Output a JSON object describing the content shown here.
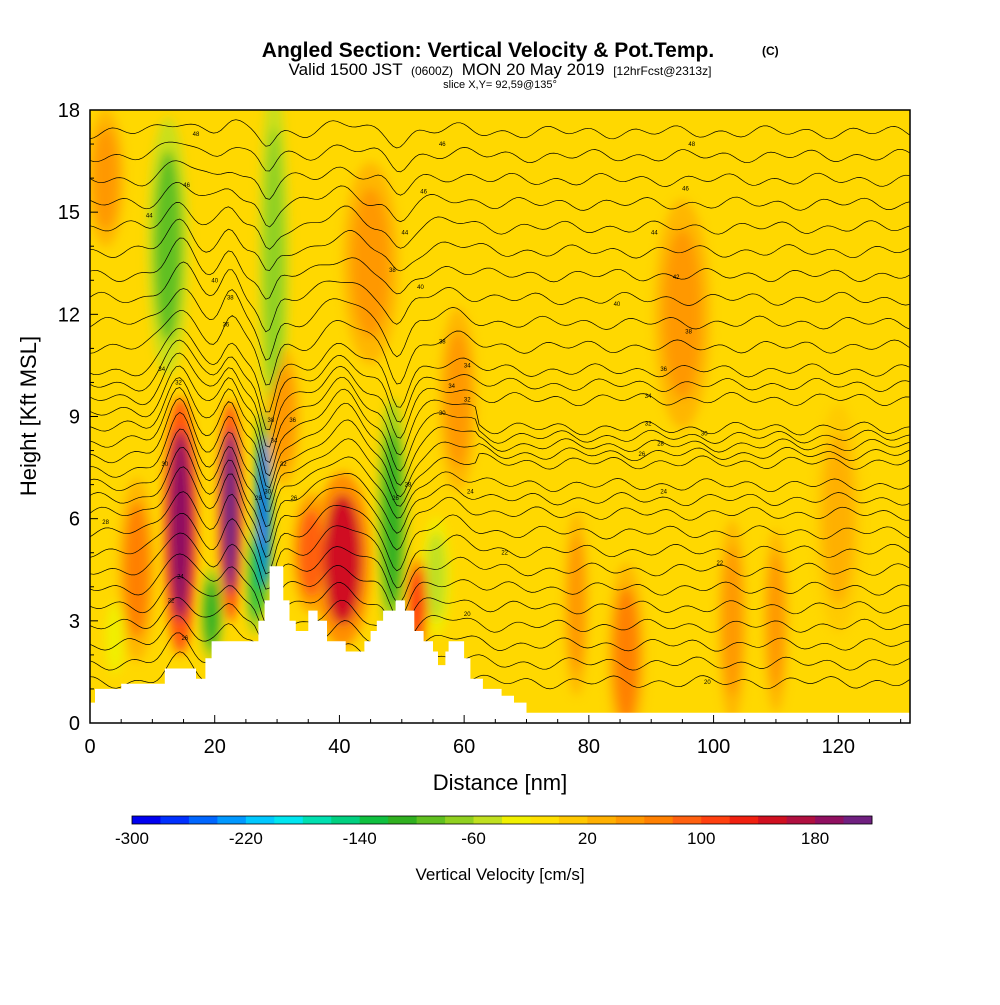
{
  "chart_data": {
    "type": "heatmap",
    "title": "Angled Section: Vertical Velocity & Pot.Temp.",
    "title_unit": "(C)",
    "subtitle_main": "Valid 1500 JST",
    "subtitle_z": "(0600Z)",
    "subtitle_date": "MON 20 May 2019",
    "subtitle_fcst": "[12hrFcst@2313z]",
    "slice_label": "slice X,Y= 92,59@135°",
    "xlabel": "Distance [nm]",
    "ylabel": "Height [Kft MSL]",
    "xlim": [
      0,
      131.5
    ],
    "ylim": [
      0,
      18
    ],
    "x_ticks": [
      0,
      20,
      40,
      60,
      80,
      100,
      120
    ],
    "y_ticks": [
      0,
      3,
      6,
      9,
      12,
      15,
      18
    ],
    "colorbar": {
      "label": "Vertical Velocity [cm/s]",
      "range": [
        -300,
        220
      ],
      "step": 20,
      "ticks": [
        -300,
        -220,
        -140,
        -60,
        20,
        100,
        180
      ],
      "colors": [
        "#0000f0",
        "#0030ff",
        "#0066ff",
        "#0098ff",
        "#00c8ff",
        "#00e6f0",
        "#00e0b0",
        "#00d080",
        "#10c040",
        "#30b020",
        "#60c020",
        "#90d020",
        "#c0e020",
        "#f0f000",
        "#ffe000",
        "#ffc800",
        "#ffb000",
        "#ff9800",
        "#ff8000",
        "#ff6010",
        "#ff4010",
        "#f02010",
        "#d01020",
        "#b01040",
        "#901060",
        "#702080"
      ]
    },
    "terrain": [
      [
        0,
        0.6
      ],
      [
        0.8,
        0.6
      ],
      [
        0.8,
        1.0
      ],
      [
        5,
        1.0
      ],
      [
        5,
        1.15
      ],
      [
        12,
        1.15
      ],
      [
        12,
        1.6
      ],
      [
        17,
        1.6
      ],
      [
        17,
        1.3
      ],
      [
        18.5,
        1.3
      ],
      [
        18.5,
        1.9
      ],
      [
        19.5,
        1.9
      ],
      [
        19.5,
        2.4
      ],
      [
        27,
        2.4
      ],
      [
        27,
        3.0
      ],
      [
        28,
        3.0
      ],
      [
        28,
        3.6
      ],
      [
        28.8,
        3.6
      ],
      [
        28.8,
        4.6
      ],
      [
        31,
        4.6
      ],
      [
        31,
        3.6
      ],
      [
        32,
        3.6
      ],
      [
        32,
        3.0
      ],
      [
        33,
        3.0
      ],
      [
        33,
        2.7
      ],
      [
        35,
        2.7
      ],
      [
        35,
        3.3
      ],
      [
        36.5,
        3.3
      ],
      [
        36.5,
        3.0
      ],
      [
        38,
        3.0
      ],
      [
        38,
        2.4
      ],
      [
        41,
        2.4
      ],
      [
        41,
        2.1
      ],
      [
        44,
        2.1
      ],
      [
        44,
        2.4
      ],
      [
        45,
        2.4
      ],
      [
        45,
        2.7
      ],
      [
        46,
        2.7
      ],
      [
        46,
        3.0
      ],
      [
        47,
        3.0
      ],
      [
        47,
        3.3
      ],
      [
        49,
        3.3
      ],
      [
        49,
        3.6
      ],
      [
        50.5,
        3.6
      ],
      [
        50.5,
        3.3
      ],
      [
        52,
        3.3
      ],
      [
        52,
        2.7
      ],
      [
        53.5,
        2.7
      ],
      [
        53.5,
        2.4
      ],
      [
        55,
        2.4
      ],
      [
        55,
        2.1
      ],
      [
        55.8,
        2.1
      ],
      [
        55.8,
        1.7
      ],
      [
        57,
        1.7
      ],
      [
        57,
        2.1
      ],
      [
        57.5,
        2.1
      ],
      [
        57.5,
        2.4
      ],
      [
        60,
        2.4
      ],
      [
        60,
        1.9
      ],
      [
        61,
        1.9
      ],
      [
        61,
        1.3
      ],
      [
        63,
        1.3
      ],
      [
        63,
        1.0
      ],
      [
        66,
        1.0
      ],
      [
        66,
        0.8
      ],
      [
        68,
        0.8
      ],
      [
        68,
        0.6
      ],
      [
        70,
        0.6
      ],
      [
        70,
        0.3
      ],
      [
        131.5,
        0.3
      ]
    ],
    "features": [
      {
        "x": 14.5,
        "y": 5.8,
        "dx": 1.8,
        "dy": 2.8,
        "w": 195
      },
      {
        "x": 22.5,
        "y": 6.2,
        "dx": 1.3,
        "dy": 2.4,
        "w": 200
      },
      {
        "x": 27.8,
        "y": 6.2,
        "dx": 0.9,
        "dy": 2.2,
        "w": -250
      },
      {
        "x": 26.5,
        "y": 4.2,
        "dx": 1.0,
        "dy": 1.2,
        "w": -140
      },
      {
        "x": 19.5,
        "y": 3.2,
        "dx": 1.2,
        "dy": 1.0,
        "w": -110
      },
      {
        "x": 12.5,
        "y": 14.0,
        "dx": 2.2,
        "dy": 2.8,
        "w": -90
      },
      {
        "x": 29.5,
        "y": 13.5,
        "dx": 1.6,
        "dy": 4.0,
        "w": -80
      },
      {
        "x": 40.5,
        "y": 4.8,
        "dx": 3.0,
        "dy": 1.9,
        "w": 140
      },
      {
        "x": 35.5,
        "y": 5.0,
        "dx": 2.0,
        "dy": 1.3,
        "w": 90
      },
      {
        "x": 48.5,
        "y": 6.0,
        "dx": 1.6,
        "dy": 2.6,
        "w": -120
      },
      {
        "x": 55.5,
        "y": 4.3,
        "dx": 1.6,
        "dy": 1.3,
        "w": -60
      },
      {
        "x": 52.5,
        "y": 3.5,
        "dx": 1.2,
        "dy": 1.0,
        "w": 110
      },
      {
        "x": 7.5,
        "y": 4.5,
        "dx": 2.0,
        "dy": 2.0,
        "w": 70
      },
      {
        "x": 45.0,
        "y": 13.5,
        "dx": 3.0,
        "dy": 2.2,
        "w": 55
      },
      {
        "x": 59.0,
        "y": 9.5,
        "dx": 2.0,
        "dy": 2.0,
        "w": 50
      },
      {
        "x": 86.0,
        "y": 2.0,
        "dx": 2.0,
        "dy": 2.0,
        "w": 60
      },
      {
        "x": 103.0,
        "y": 3.0,
        "dx": 1.5,
        "dy": 2.2,
        "w": 55
      },
      {
        "x": 78.0,
        "y": 3.5,
        "dx": 1.3,
        "dy": 2.0,
        "w": 45
      },
      {
        "x": 110.0,
        "y": 3.0,
        "dx": 1.3,
        "dy": 2.0,
        "w": 45
      },
      {
        "x": 95.0,
        "y": 12.0,
        "dx": 3.0,
        "dy": 2.5,
        "w": 40
      },
      {
        "x": 31.0,
        "y": 9.0,
        "dx": 1.8,
        "dy": 1.5,
        "w": 50
      },
      {
        "x": 120.0,
        "y": 6.0,
        "dx": 2.5,
        "dy": 2.5,
        "w": 35
      },
      {
        "x": 2.5,
        "y": 16.0,
        "dx": 2.0,
        "dy": 1.5,
        "w": 40
      },
      {
        "x": 4.0,
        "y": 2.5,
        "dx": 1.0,
        "dy": 0.8,
        "w": -40
      }
    ],
    "contour_labels": [
      {
        "x": 17.0,
        "y": 17.3,
        "t": "48"
      },
      {
        "x": 15.5,
        "y": 15.8,
        "t": "46"
      },
      {
        "x": 9.5,
        "y": 14.9,
        "t": "44"
      },
      {
        "x": 20.0,
        "y": 13.0,
        "t": "40"
      },
      {
        "x": 22.5,
        "y": 12.5,
        "t": "38"
      },
      {
        "x": 21.8,
        "y": 11.7,
        "t": "36"
      },
      {
        "x": 11.5,
        "y": 10.4,
        "t": "34"
      },
      {
        "x": 14.2,
        "y": 10.0,
        "t": "32"
      },
      {
        "x": 12.0,
        "y": 7.6,
        "t": "30"
      },
      {
        "x": 2.5,
        "y": 5.9,
        "t": "28"
      },
      {
        "x": 14.5,
        "y": 4.3,
        "t": "24"
      },
      {
        "x": 13.0,
        "y": 3.6,
        "t": "22"
      },
      {
        "x": 15.2,
        "y": 2.5,
        "t": "26"
      },
      {
        "x": 29.0,
        "y": 8.9,
        "t": "38"
      },
      {
        "x": 32.5,
        "y": 8.9,
        "t": "36"
      },
      {
        "x": 29.5,
        "y": 8.3,
        "t": "34"
      },
      {
        "x": 31.0,
        "y": 7.6,
        "t": "32"
      },
      {
        "x": 28.5,
        "y": 6.8,
        "t": "30"
      },
      {
        "x": 27.0,
        "y": 6.6,
        "t": "28"
      },
      {
        "x": 32.7,
        "y": 6.6,
        "t": "26"
      },
      {
        "x": 56.5,
        "y": 17.0,
        "t": "46"
      },
      {
        "x": 53.5,
        "y": 15.6,
        "t": "46"
      },
      {
        "x": 50.5,
        "y": 14.4,
        "t": "44"
      },
      {
        "x": 48.5,
        "y": 13.3,
        "t": "38"
      },
      {
        "x": 53.0,
        "y": 12.8,
        "t": "40"
      },
      {
        "x": 56.5,
        "y": 11.2,
        "t": "38"
      },
      {
        "x": 60.5,
        "y": 10.5,
        "t": "34"
      },
      {
        "x": 58.0,
        "y": 9.9,
        "t": "34"
      },
      {
        "x": 60.5,
        "y": 9.5,
        "t": "32"
      },
      {
        "x": 56.5,
        "y": 9.1,
        "t": "30"
      },
      {
        "x": 51.0,
        "y": 7.0,
        "t": "28"
      },
      {
        "x": 49.0,
        "y": 6.6,
        "t": "26"
      },
      {
        "x": 61.0,
        "y": 6.8,
        "t": "24"
      },
      {
        "x": 66.5,
        "y": 5.0,
        "t": "22"
      },
      {
        "x": 60.5,
        "y": 3.2,
        "t": "20"
      },
      {
        "x": 96.5,
        "y": 17.0,
        "t": "48"
      },
      {
        "x": 95.5,
        "y": 15.7,
        "t": "46"
      },
      {
        "x": 90.5,
        "y": 14.4,
        "t": "44"
      },
      {
        "x": 94.0,
        "y": 13.1,
        "t": "42"
      },
      {
        "x": 84.5,
        "y": 12.3,
        "t": "40"
      },
      {
        "x": 96.0,
        "y": 11.5,
        "t": "38"
      },
      {
        "x": 92.0,
        "y": 10.4,
        "t": "36"
      },
      {
        "x": 89.5,
        "y": 9.6,
        "t": "34"
      },
      {
        "x": 89.5,
        "y": 8.8,
        "t": "32"
      },
      {
        "x": 98.5,
        "y": 8.5,
        "t": "30"
      },
      {
        "x": 91.5,
        "y": 8.2,
        "t": "28"
      },
      {
        "x": 88.5,
        "y": 7.9,
        "t": "26"
      },
      {
        "x": 92.0,
        "y": 6.8,
        "t": "24"
      },
      {
        "x": 101.0,
        "y": 4.7,
        "t": "22"
      },
      {
        "x": 99.0,
        "y": 1.2,
        "t": "20"
      }
    ]
  }
}
